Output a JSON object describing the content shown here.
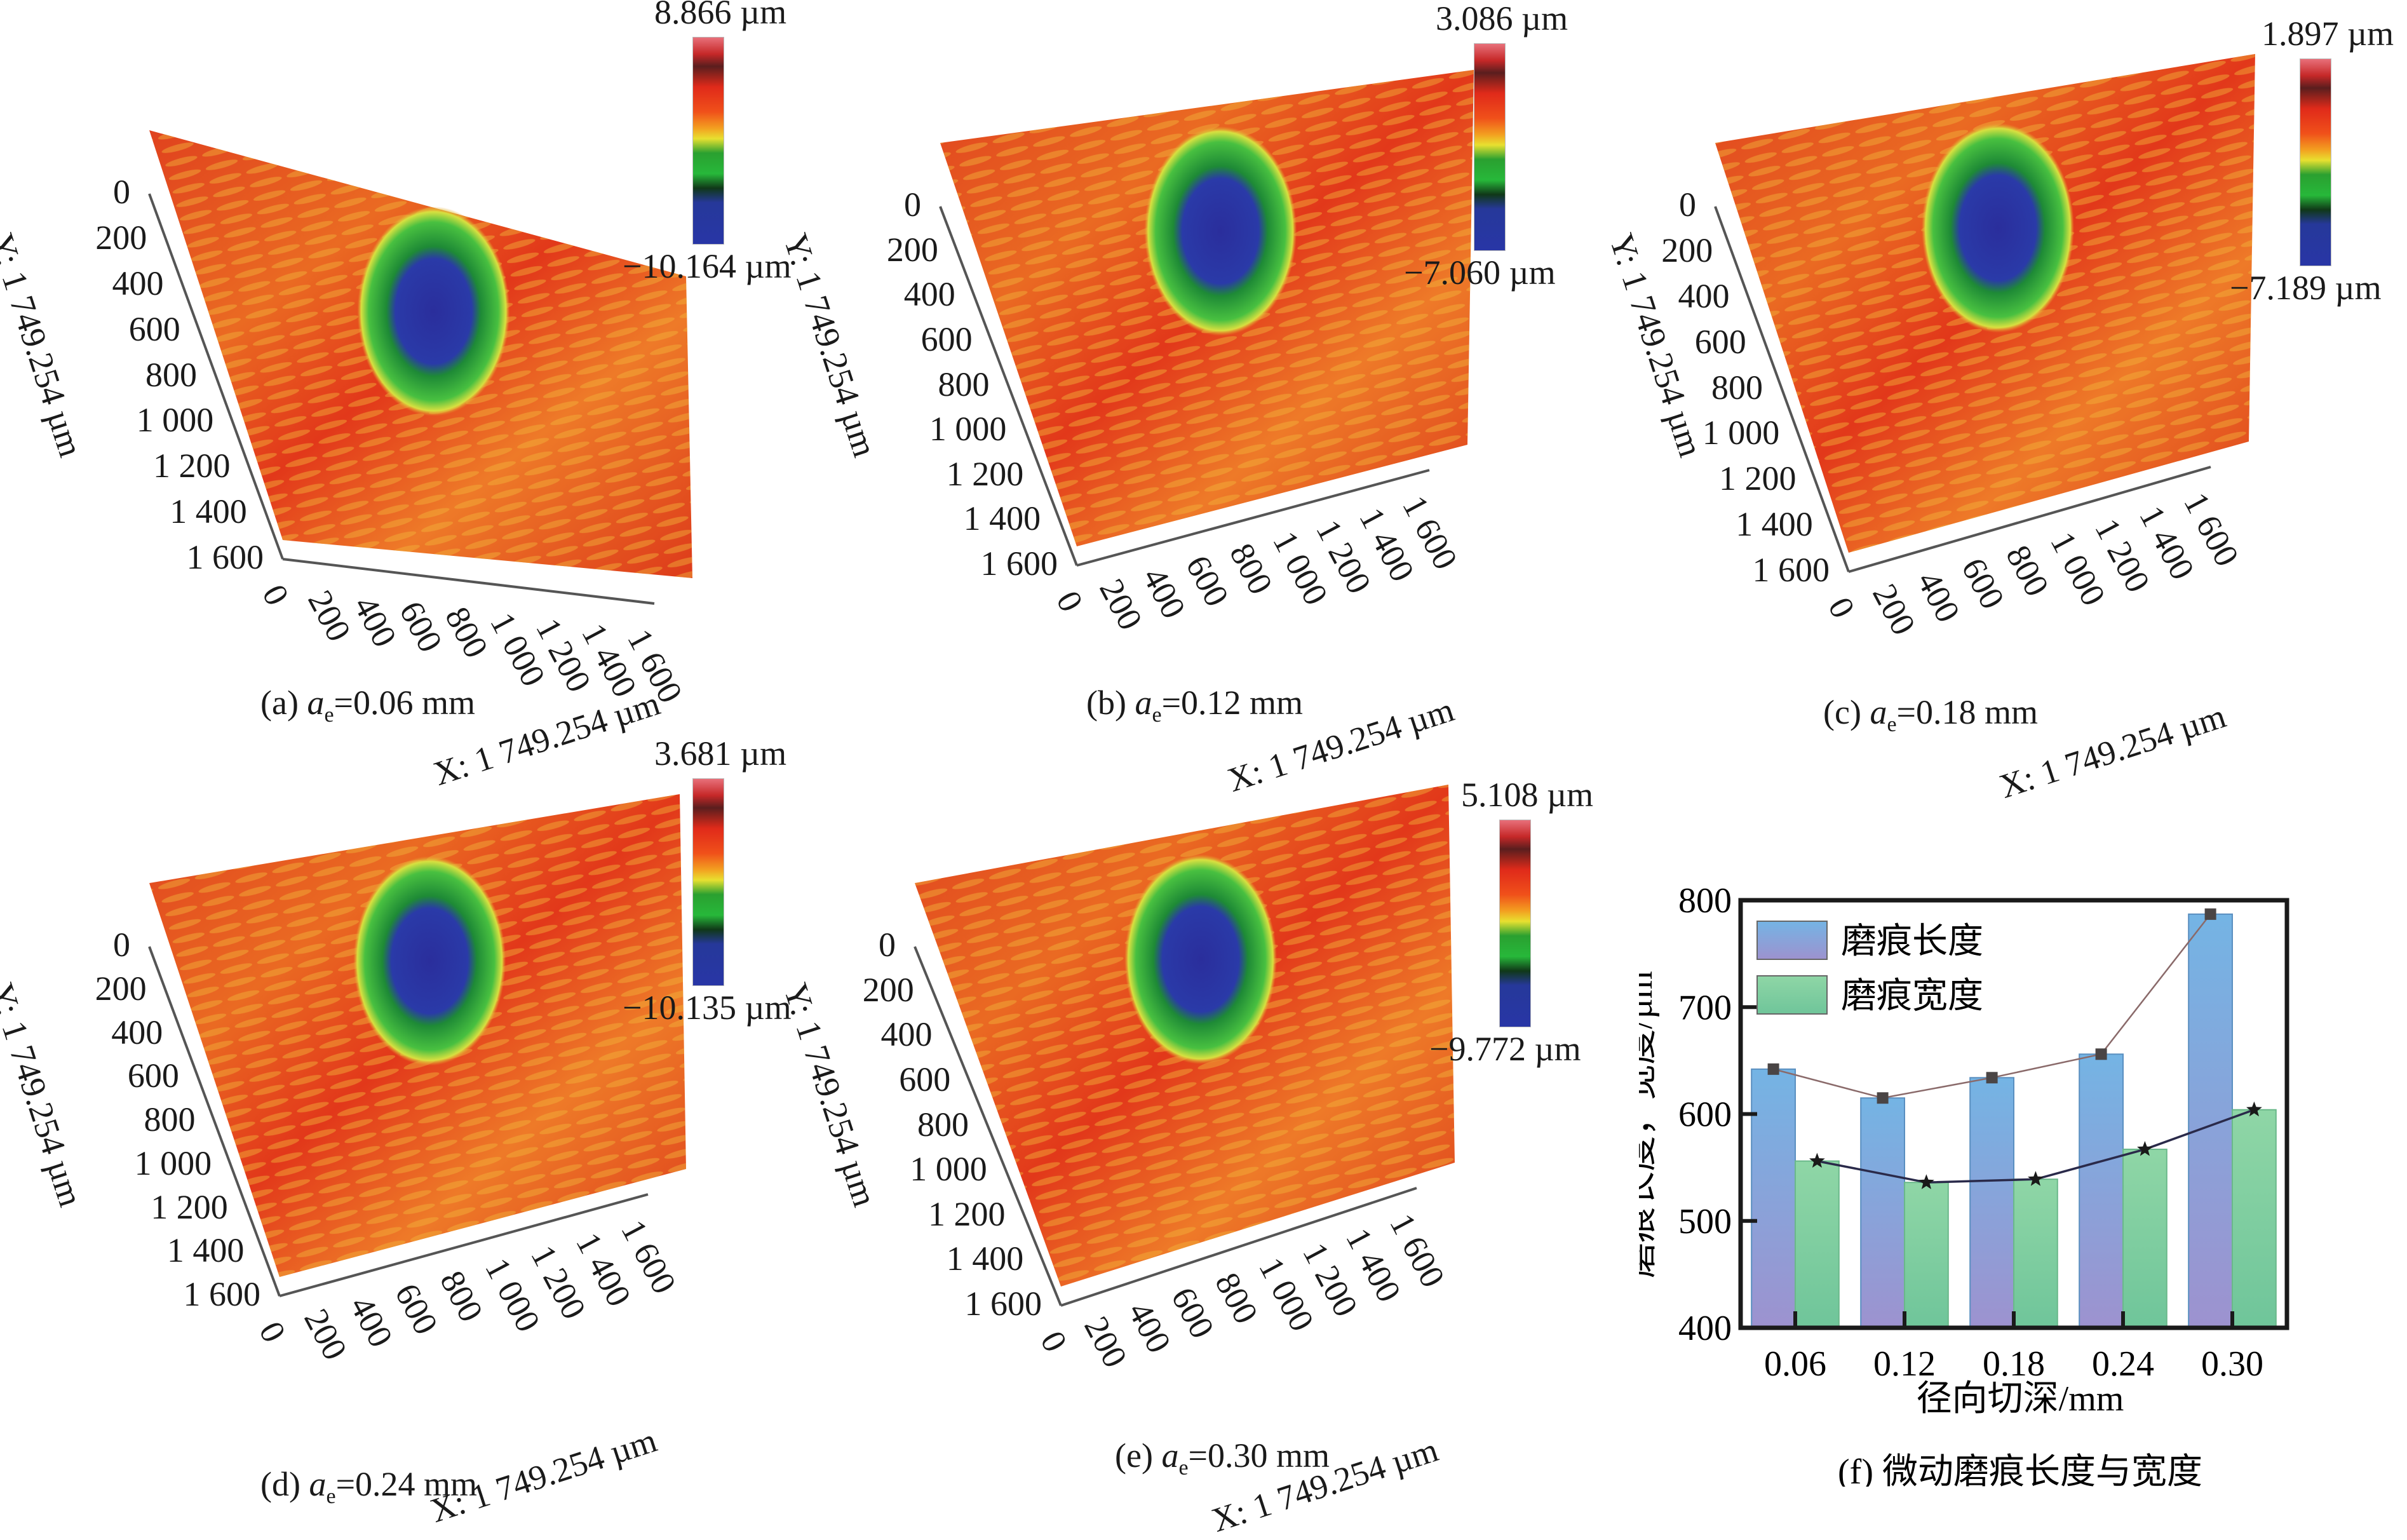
{
  "panels": [
    {
      "id": "a",
      "caption_prefix": "(a) ",
      "caption_var": "a",
      "caption_sub": "e",
      "caption_suffix": "=0.06 mm",
      "cbar_max": "8.866 µm",
      "cbar_min": "−10.164 µm"
    },
    {
      "id": "b",
      "caption_prefix": "(b) ",
      "caption_var": "a",
      "caption_sub": "e",
      "caption_suffix": "=0.12 mm",
      "cbar_max": "3.086 µm",
      "cbar_min": "−7.060 µm"
    },
    {
      "id": "c",
      "caption_prefix": "(c) ",
      "caption_var": "a",
      "caption_sub": "e",
      "caption_suffix": "=0.18 mm",
      "cbar_max": "1.897 µm",
      "cbar_min": "−7.189 µm"
    },
    {
      "id": "d",
      "caption_prefix": "(d) ",
      "caption_var": "a",
      "caption_sub": "e",
      "caption_suffix": "=0.24 mm",
      "cbar_max": "3.681 µm",
      "cbar_min": "−10.135 µm"
    },
    {
      "id": "e",
      "caption_prefix": "(e) ",
      "caption_var": "a",
      "caption_sub": "e",
      "caption_suffix": "=0.30 mm",
      "cbar_max": "5.108 µm",
      "cbar_min": "−9.772 µm"
    }
  ],
  "surface_axes": {
    "y_title": "Y: 1 749.254 µm",
    "x_title": "X: 1 749.254 µm",
    "y_ticks": [
      "0",
      "200",
      "400",
      "600",
      "800",
      "1 000",
      "1 200",
      "1 400",
      "1 600"
    ],
    "x_ticks": [
      "0",
      "200",
      "400",
      "600",
      "800",
      "1 000",
      "1 200",
      "1 400",
      "1 600"
    ]
  },
  "chart_caption": "(f) 微动磨痕长度与宽度",
  "chart_data": {
    "type": "bar",
    "title": "(f) 微动磨痕长度与宽度",
    "xlabel": "径向切深/mm",
    "ylabel": "磨痕长度，宽度/µm",
    "categories": [
      "0.06",
      "0.12",
      "0.18",
      "0.24",
      "0.30"
    ],
    "ylim": [
      400,
      800
    ],
    "yticks": [
      "400",
      "500",
      "600",
      "700",
      "800"
    ],
    "legend_position": "top-left",
    "series": [
      {
        "name": "磨痕长度",
        "values": [
          642,
          615,
          634,
          656,
          787
        ],
        "color": "#7aaee0",
        "marker": "square",
        "line_color": "#8a6a6a"
      },
      {
        "name": "磨痕宽度",
        "values": [
          556,
          536,
          539,
          567,
          604
        ],
        "color": "#86cfa0",
        "marker": "star",
        "line_color": "#2a2a4a"
      }
    ]
  }
}
